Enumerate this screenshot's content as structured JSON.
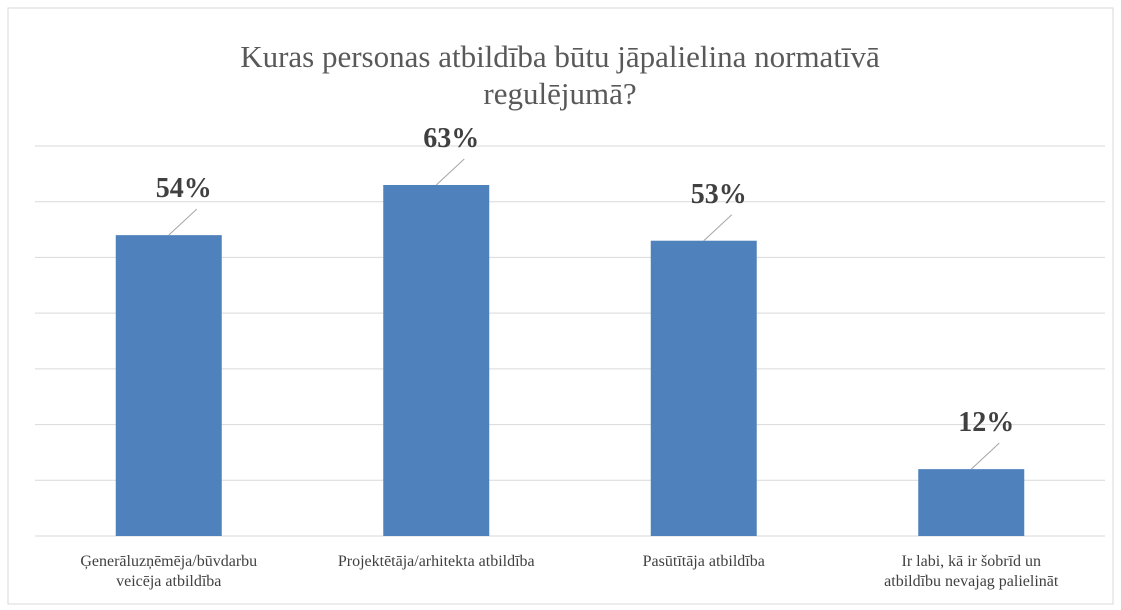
{
  "chart_data": {
    "type": "bar",
    "title": "Kuras personas atbildība būtu jāpalielina normatīvā\nregulējumā?",
    "categories": [
      "Ģenerāluzņēmēja/būvdarbu\nveicēja atbildība",
      "Projektētāja/arhitekta atbildība",
      "Pasūtītāja atbildība",
      "Ir labi, kā ir šobrīd un\natbildību nevajag palielināt"
    ],
    "values": [
      54,
      63,
      53,
      12
    ],
    "value_labels": [
      "54%",
      "63%",
      "53%",
      "12%"
    ],
    "color": "#4f81bd",
    "ylim": [
      0,
      70
    ],
    "yticks": [
      0,
      10,
      20,
      30,
      40,
      50,
      60,
      70
    ],
    "grid": true
  }
}
